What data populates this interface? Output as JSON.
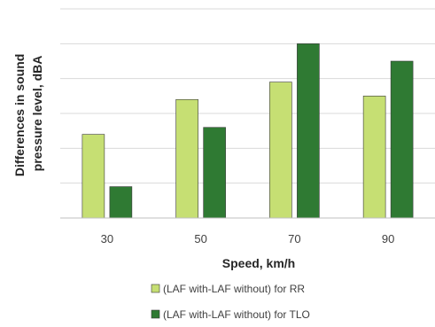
{
  "chart_data": {
    "type": "bar",
    "title": "",
    "xlabel": "Speed, km/h",
    "ylabel": "Differences in sound pressure level, dBA",
    "ylabel_lines": [
      "Differences in sound",
      "pressure level, dBA"
    ],
    "categories": [
      "30",
      "50",
      "70",
      "90"
    ],
    "ylim": [
      0,
      6
    ],
    "y_ticks_labeled": false,
    "grid": true,
    "legend_position": "bottom",
    "series": [
      {
        "name": "(LAF with-LAF without) for RR",
        "color": "#c6df73",
        "values": [
          2.4,
          3.4,
          3.9,
          3.5
        ]
      },
      {
        "name": "(LAF with-LAF without) for TLO",
        "color": "#2f7a33",
        "values": [
          0.9,
          2.6,
          5.0,
          4.5
        ]
      }
    ]
  }
}
